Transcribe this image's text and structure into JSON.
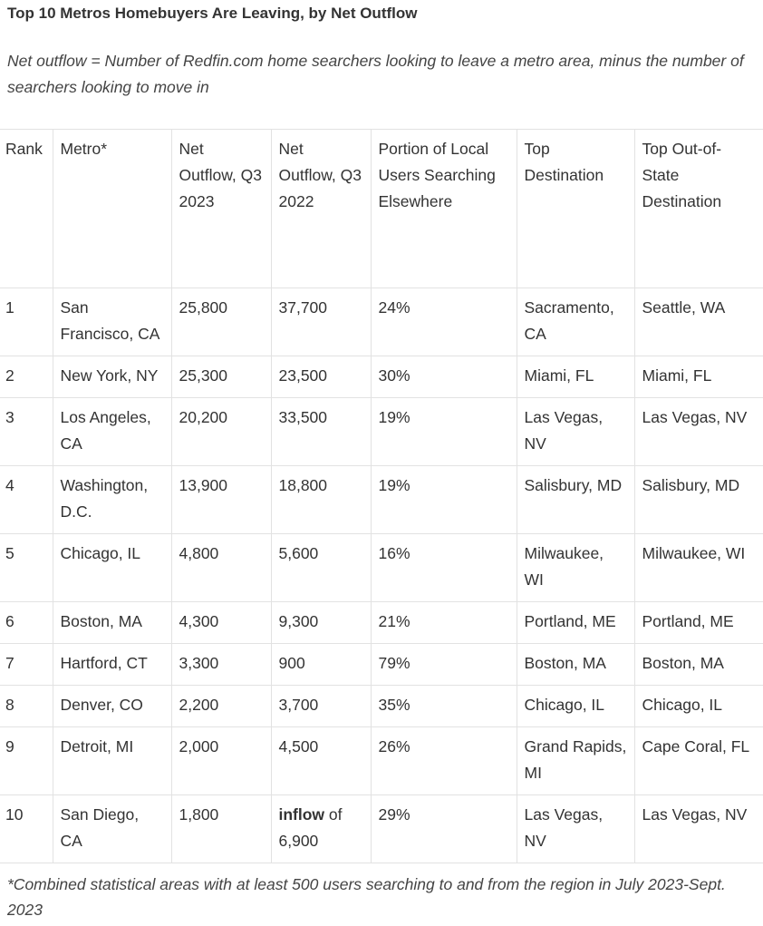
{
  "title": "Top 10 Metros Homebuyers Are Leaving, by Net Outflow",
  "subtitle": "Net outflow = Number of Redfin.com home searchers looking to leave a metro area, minus the number of searchers looking to move in",
  "headers": {
    "rank": "Rank",
    "metro": "Metro*",
    "outflow_2023": "Net Outflow, Q3 2023",
    "outflow_2022": "Net Outflow, Q3 2022",
    "portion": "Portion of Local Users Searching Elsewhere",
    "top_dest": "Top Destination",
    "top_oos_dest": "Top Out-of-State Destination"
  },
  "rows": [
    {
      "rank": "1",
      "metro": "San Francisco, CA",
      "outflow_2023": "25,800",
      "outflow_2022": "37,700",
      "portion": "24%",
      "top_dest": "Sacramento, CA",
      "top_oos_dest": "Seattle, WA"
    },
    {
      "rank": "2",
      "metro": "New York, NY",
      "outflow_2023": "25,300",
      "outflow_2022": "23,500",
      "portion": "30%",
      "top_dest": "Miami, FL",
      "top_oos_dest": "Miami, FL"
    },
    {
      "rank": "3",
      "metro": "Los Angeles, CA",
      "outflow_2023": "20,200",
      "outflow_2022": "33,500",
      "portion": "19%",
      "top_dest": "Las Vegas, NV",
      "top_oos_dest": "Las Vegas, NV"
    },
    {
      "rank": "4",
      "metro": "Washington, D.C.",
      "outflow_2023": "13,900",
      "outflow_2022": "18,800",
      "portion": "19%",
      "top_dest": "Salisbury, MD",
      "top_oos_dest": "Salisbury, MD"
    },
    {
      "rank": "5",
      "metro": "Chicago, IL",
      "outflow_2023": "4,800",
      "outflow_2022": "5,600",
      "portion": "16%",
      "top_dest": "Milwaukee, WI",
      "top_oos_dest": "Milwaukee, WI"
    },
    {
      "rank": "6",
      "metro": "Boston, MA",
      "outflow_2023": "4,300",
      "outflow_2022": "9,300",
      "portion": "21%",
      "top_dest": "Portland, ME",
      "top_oos_dest": "Portland, ME"
    },
    {
      "rank": "7",
      "metro": "Hartford, CT",
      "outflow_2023": "3,300",
      "outflow_2022": "900",
      "portion": "79%",
      "top_dest": "Boston, MA",
      "top_oos_dest": "Boston, MA"
    },
    {
      "rank": "8",
      "metro": "Denver, CO",
      "outflow_2023": "2,200",
      "outflow_2022": "3,700",
      "portion": "35%",
      "top_dest": "Chicago, IL",
      "top_oos_dest": "Chicago, IL"
    },
    {
      "rank": "9",
      "metro": "Detroit, MI",
      "outflow_2023": "2,000",
      "outflow_2022": "4,500",
      "portion": "26%",
      "top_dest": "Grand Rapids, MI",
      "top_oos_dest": "Cape Coral, FL"
    },
    {
      "rank": "10",
      "metro": "San Diego, CA",
      "outflow_2023": "1,800",
      "outflow_2022_bold": "inflow",
      "outflow_2022": " of 6,900",
      "portion": "29%",
      "top_dest": "Las Vegas, NV",
      "top_oos_dest": "Las Vegas, NV"
    }
  ],
  "footnote": "*Combined statistical areas with at least 500 users searching to and from the region in July 2023-Sept. 2023"
}
